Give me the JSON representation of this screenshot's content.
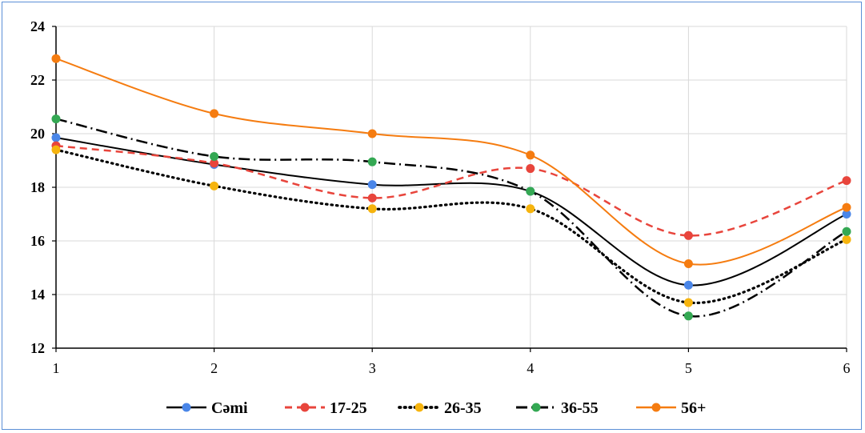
{
  "chart_data": {
    "type": "line",
    "title": "",
    "xlabel": "",
    "ylabel": "",
    "x": [
      1,
      2,
      3,
      4,
      5,
      6
    ],
    "x_tick_labels": [
      "1",
      "2",
      "3",
      "4",
      "5",
      "6"
    ],
    "ylim": [
      12,
      24
    ],
    "y_ticks": [
      12,
      14,
      16,
      18,
      20,
      22,
      24
    ],
    "y_tick_labels": [
      "12",
      "14",
      "16",
      "18",
      "20",
      "22",
      "24"
    ],
    "grid": "vertical",
    "legend_position": "bottom",
    "series": [
      {
        "name": "Cəmi",
        "values": [
          19.85,
          18.85,
          18.1,
          17.85,
          14.35,
          17.0
        ],
        "line_color": "#000000",
        "marker_color": "#4a86e8",
        "line_style": "solid"
      },
      {
        "name": "17-25",
        "values": [
          19.55,
          18.9,
          17.6,
          18.7,
          16.2,
          18.25
        ],
        "line_color": "#e8453c",
        "marker_color": "#e8453c",
        "line_style": "dashed"
      },
      {
        "name": "26-35",
        "values": [
          19.4,
          18.05,
          17.2,
          17.2,
          13.7,
          16.05
        ],
        "line_color": "#000000",
        "marker_color": "#f6b40e",
        "line_style": "dotted"
      },
      {
        "name": "36-55",
        "values": [
          20.55,
          19.15,
          18.95,
          17.85,
          13.2,
          16.35
        ],
        "line_color": "#000000",
        "marker_color": "#34a853",
        "line_style": "dashdot"
      },
      {
        "name": "56+",
        "values": [
          22.8,
          20.75,
          20.0,
          19.2,
          15.15,
          17.25
        ],
        "line_color": "#f57c10",
        "marker_color": "#f57c10",
        "line_style": "solid"
      }
    ]
  }
}
